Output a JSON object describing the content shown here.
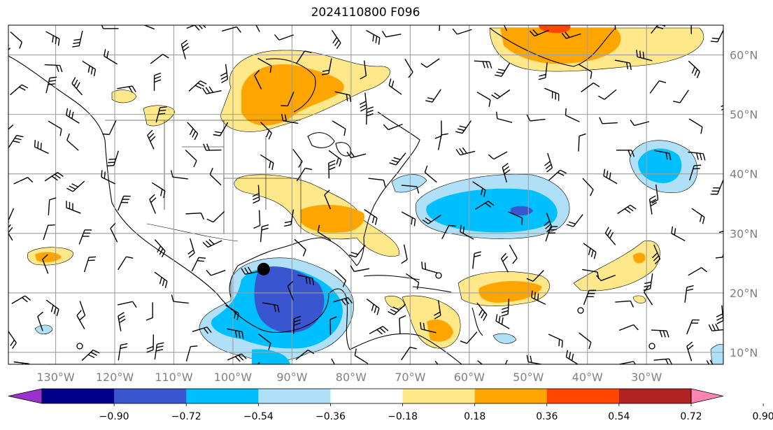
{
  "title": "2024110800 F096",
  "map": {
    "extent": {
      "lon_min": -138,
      "lon_max": -17,
      "lat_min": 8,
      "lat_max": 65
    },
    "lat_ticks": [
      {
        "value": 60,
        "label": "60°N"
      },
      {
        "value": 50,
        "label": "50°N"
      },
      {
        "value": 40,
        "label": "40°N"
      },
      {
        "value": 30,
        "label": "30°N"
      },
      {
        "value": 20,
        "label": "20°N"
      },
      {
        "value": 10,
        "label": "10°N"
      }
    ],
    "lon_ticks": [
      {
        "value": -130,
        "label": "130°W"
      },
      {
        "value": -120,
        "label": "120°W"
      },
      {
        "value": -110,
        "label": "110°W"
      },
      {
        "value": -100,
        "label": "100°W"
      },
      {
        "value": -90,
        "label": "90°W"
      },
      {
        "value": -80,
        "label": "80°W"
      },
      {
        "value": -70,
        "label": "70°W"
      },
      {
        "value": -60,
        "label": "60°W"
      },
      {
        "value": -50,
        "label": "50°W"
      },
      {
        "value": -40,
        "label": "40°W"
      },
      {
        "value": -30,
        "label": "30°W"
      }
    ],
    "marker": {
      "lon": -94.8,
      "lat": 24.0,
      "color": "#000000"
    }
  },
  "colorbar": {
    "levels": [
      "−0.90",
      "−0.72",
      "−0.54",
      "−0.36",
      "−0.18",
      "0.18",
      "0.36",
      "0.54",
      "0.72",
      "0.90"
    ],
    "colors": [
      "#9a32cd",
      "#00008b",
      "#3a55d0",
      "#00bfff",
      "#b0e0f8",
      "#ffffff",
      "#ffe88a",
      "#ffa500",
      "#ff4500",
      "#b22222",
      "#ff85b0"
    ]
  }
}
